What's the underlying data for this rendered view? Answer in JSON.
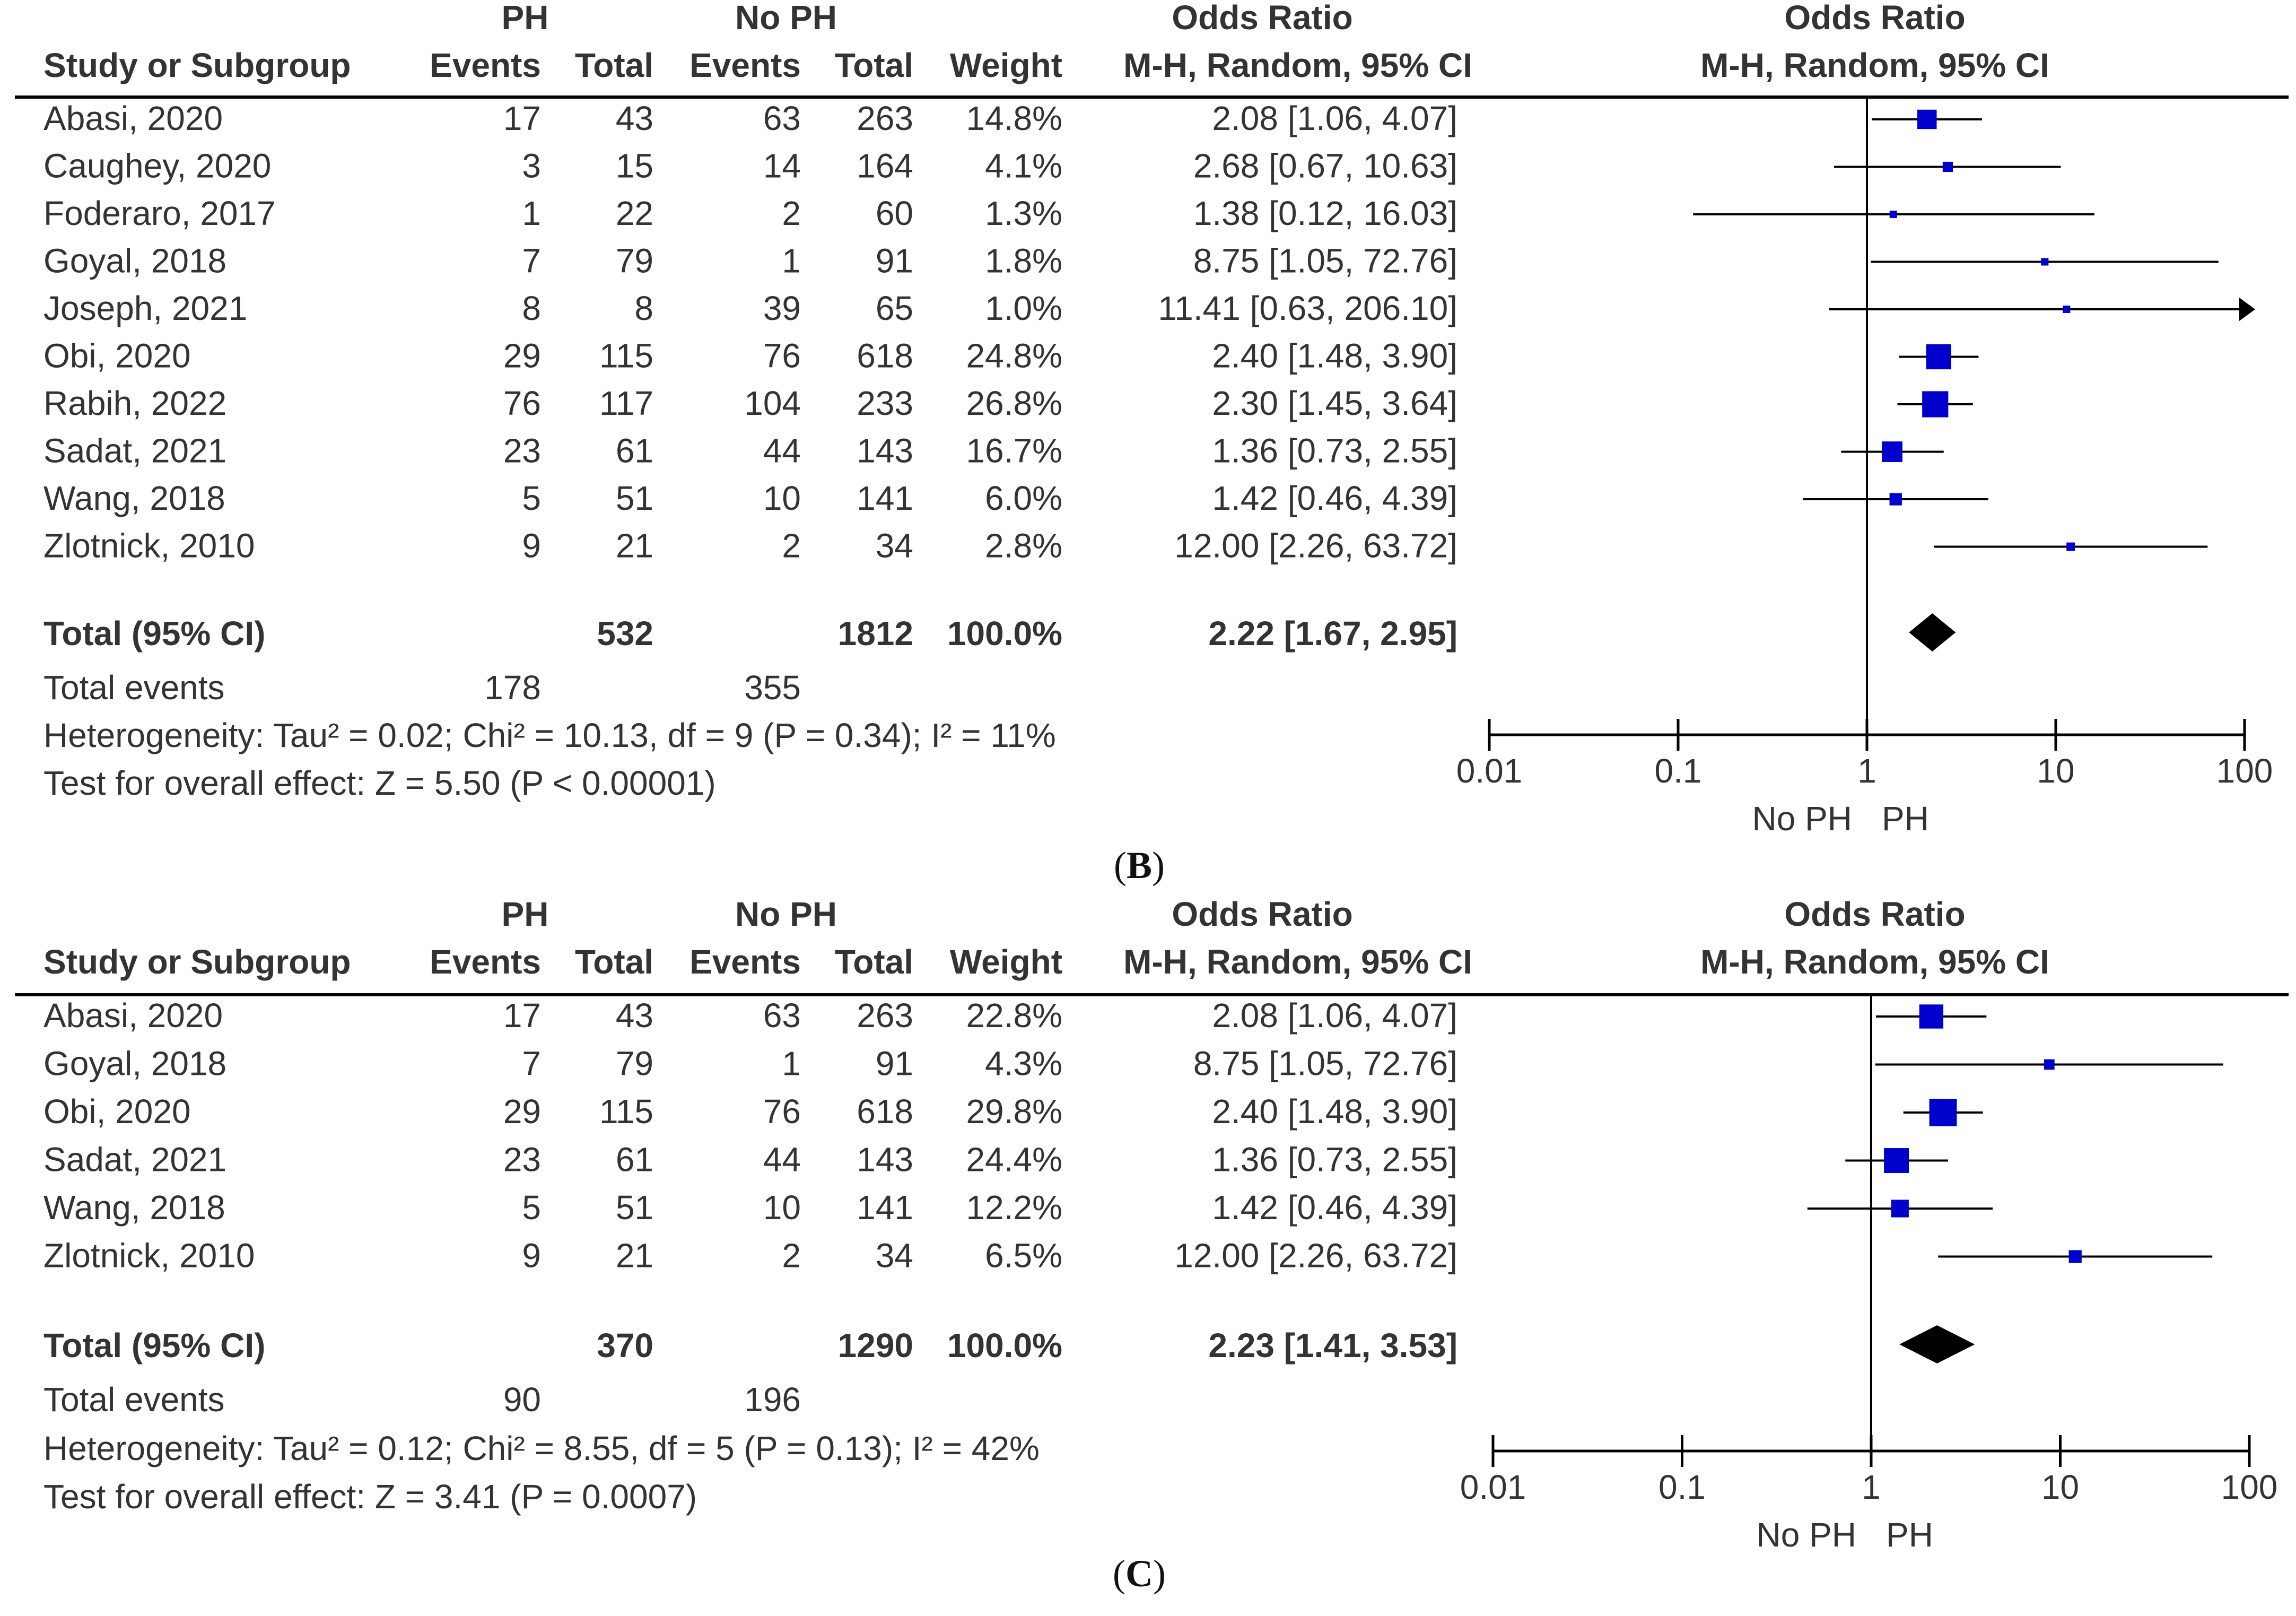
{
  "chart_data": [
    {
      "type": "forest",
      "panel_label": "B",
      "group_headers": {
        "experimental": "PH",
        "control": "No PH",
        "or_text": "Odds Ratio",
        "or_plot": "Odds Ratio"
      },
      "column_headers": {
        "study": "Study or Subgroup",
        "exp_events": "Events",
        "exp_total": "Total",
        "ctl_events": "Events",
        "ctl_total": "Total",
        "weight": "Weight",
        "or_text": "M-H, Random, 95% CI",
        "or_plot": "M-H, Random, 95% CI"
      },
      "studies": [
        {
          "name": "Abasi, 2020",
          "exp_events": "17",
          "exp_total": "43",
          "ctl_events": "63",
          "ctl_total": "263",
          "weight": "14.8%",
          "ci_text": "2.08 [1.06, 4.07]",
          "or": 2.08,
          "lower": 1.06,
          "upper": 4.07,
          "w": 14.8
        },
        {
          "name": "Caughey, 2020",
          "exp_events": "3",
          "exp_total": "15",
          "ctl_events": "14",
          "ctl_total": "164",
          "weight": "4.1%",
          "ci_text": "2.68 [0.67, 10.63]",
          "or": 2.68,
          "lower": 0.67,
          "upper": 10.63,
          "w": 4.1
        },
        {
          "name": "Foderaro, 2017",
          "exp_events": "1",
          "exp_total": "22",
          "ctl_events": "2",
          "ctl_total": "60",
          "weight": "1.3%",
          "ci_text": "1.38 [0.12, 16.03]",
          "or": 1.38,
          "lower": 0.12,
          "upper": 16.03,
          "w": 1.3
        },
        {
          "name": "Goyal, 2018",
          "exp_events": "7",
          "exp_total": "79",
          "ctl_events": "1",
          "ctl_total": "91",
          "weight": "1.8%",
          "ci_text": "8.75 [1.05, 72.76]",
          "or": 8.75,
          "lower": 1.05,
          "upper": 72.76,
          "w": 1.8
        },
        {
          "name": "Joseph, 2021",
          "exp_events": "8",
          "exp_total": "8",
          "ctl_events": "39",
          "ctl_total": "65",
          "weight": "1.0%",
          "ci_text": "11.41 [0.63, 206.10]",
          "or": 11.41,
          "lower": 0.63,
          "upper": 206.1,
          "w": 1.0
        },
        {
          "name": "Obi, 2020",
          "exp_events": "29",
          "exp_total": "115",
          "ctl_events": "76",
          "ctl_total": "618",
          "weight": "24.8%",
          "ci_text": "2.40 [1.48, 3.90]",
          "or": 2.4,
          "lower": 1.48,
          "upper": 3.9,
          "w": 24.8
        },
        {
          "name": "Rabih, 2022",
          "exp_events": "76",
          "exp_total": "117",
          "ctl_events": "104",
          "ctl_total": "233",
          "weight": "26.8%",
          "ci_text": "2.30 [1.45, 3.64]",
          "or": 2.3,
          "lower": 1.45,
          "upper": 3.64,
          "w": 26.8
        },
        {
          "name": "Sadat, 2021",
          "exp_events": "23",
          "exp_total": "61",
          "ctl_events": "44",
          "ctl_total": "143",
          "weight": "16.7%",
          "ci_text": "1.36 [0.73, 2.55]",
          "or": 1.36,
          "lower": 0.73,
          "upper": 2.55,
          "w": 16.7
        },
        {
          "name": "Wang, 2018",
          "exp_events": "5",
          "exp_total": "51",
          "ctl_events": "10",
          "ctl_total": "141",
          "weight": "6.0%",
          "ci_text": "1.42 [0.46, 4.39]",
          "or": 1.42,
          "lower": 0.46,
          "upper": 4.39,
          "w": 6.0
        },
        {
          "name": "Zlotnick, 2010",
          "exp_events": "9",
          "exp_total": "21",
          "ctl_events": "2",
          "ctl_total": "34",
          "weight": "2.8%",
          "ci_text": "12.00 [2.26, 63.72]",
          "or": 12.0,
          "lower": 2.26,
          "upper": 63.72,
          "w": 2.8
        }
      ],
      "total": {
        "label": "Total (95% CI)",
        "exp_total": "532",
        "ctl_total": "1812",
        "weight": "100.0%",
        "ci_text": "2.22 [1.67, 2.95]",
        "or": 2.22,
        "lower": 1.67,
        "upper": 2.95
      },
      "total_events": {
        "label": "Total events",
        "exp": "178",
        "ctl": "355"
      },
      "heterogeneity": "Heterogeneity: Tau² = 0.02; Chi² = 10.13, df = 9 (P = 0.34); I² = 11%",
      "overall_effect": "Test for overall effect: Z = 5.50 (P < 0.00001)",
      "axis": {
        "scale": "log",
        "range": [
          0.01,
          100
        ],
        "ticks": [
          "0.01",
          "0.1",
          "1",
          "10",
          "100"
        ],
        "null_value": 1,
        "favours_left": "No PH",
        "favours_right": "PH"
      }
    },
    {
      "type": "forest",
      "panel_label": "C",
      "group_headers": {
        "experimental": "PH",
        "control": "No PH",
        "or_text": "Odds Ratio",
        "or_plot": "Odds Ratio"
      },
      "column_headers": {
        "study": "Study or Subgroup",
        "exp_events": "Events",
        "exp_total": "Total",
        "ctl_events": "Events",
        "ctl_total": "Total",
        "weight": "Weight",
        "or_text": "M-H, Random, 95% CI",
        "or_plot": "M-H, Random, 95% CI"
      },
      "studies": [
        {
          "name": "Abasi, 2020",
          "exp_events": "17",
          "exp_total": "43",
          "ctl_events": "63",
          "ctl_total": "263",
          "weight": "22.8%",
          "ci_text": "2.08 [1.06, 4.07]",
          "or": 2.08,
          "lower": 1.06,
          "upper": 4.07,
          "w": 22.8
        },
        {
          "name": "Goyal, 2018",
          "exp_events": "7",
          "exp_total": "79",
          "ctl_events": "1",
          "ctl_total": "91",
          "weight": "4.3%",
          "ci_text": "8.75 [1.05, 72.76]",
          "or": 8.75,
          "lower": 1.05,
          "upper": 72.76,
          "w": 4.3
        },
        {
          "name": "Obi, 2020",
          "exp_events": "29",
          "exp_total": "115",
          "ctl_events": "76",
          "ctl_total": "618",
          "weight": "29.8%",
          "ci_text": "2.40 [1.48, 3.90]",
          "or": 2.4,
          "lower": 1.48,
          "upper": 3.9,
          "w": 29.8
        },
        {
          "name": "Sadat, 2021",
          "exp_events": "23",
          "exp_total": "61",
          "ctl_events": "44",
          "ctl_total": "143",
          "weight": "24.4%",
          "ci_text": "1.36 [0.73, 2.55]",
          "or": 1.36,
          "lower": 0.73,
          "upper": 2.55,
          "w": 24.4
        },
        {
          "name": "Wang, 2018",
          "exp_events": "5",
          "exp_total": "51",
          "ctl_events": "10",
          "ctl_total": "141",
          "weight": "12.2%",
          "ci_text": "1.42 [0.46, 4.39]",
          "or": 1.42,
          "lower": 0.46,
          "upper": 4.39,
          "w": 12.2
        },
        {
          "name": "Zlotnick, 2010",
          "exp_events": "9",
          "exp_total": "21",
          "ctl_events": "2",
          "ctl_total": "34",
          "weight": "6.5%",
          "ci_text": "12.00 [2.26, 63.72]",
          "or": 12.0,
          "lower": 2.26,
          "upper": 63.72,
          "w": 6.5
        }
      ],
      "total": {
        "label": "Total (95% CI)",
        "exp_total": "370",
        "ctl_total": "1290",
        "weight": "100.0%",
        "ci_text": "2.23 [1.41, 3.53]",
        "or": 2.23,
        "lower": 1.41,
        "upper": 3.53
      },
      "total_events": {
        "label": "Total events",
        "exp": "90",
        "ctl": "196"
      },
      "heterogeneity": "Heterogeneity: Tau² = 0.12; Chi² = 8.55, df = 5 (P = 0.13); I² = 42%",
      "overall_effect": "Test for overall effect: Z = 3.41 (P = 0.0007)",
      "axis": {
        "scale": "log",
        "range": [
          0.01,
          100
        ],
        "ticks": [
          "0.01",
          "0.1",
          "1",
          "10",
          "100"
        ],
        "null_value": 1,
        "favours_left": "No PH",
        "favours_right": "PH"
      }
    }
  ],
  "colors": {
    "marker": "#0000cc",
    "line": "#000000",
    "text": "#333333",
    "diamond": "#000000"
  }
}
